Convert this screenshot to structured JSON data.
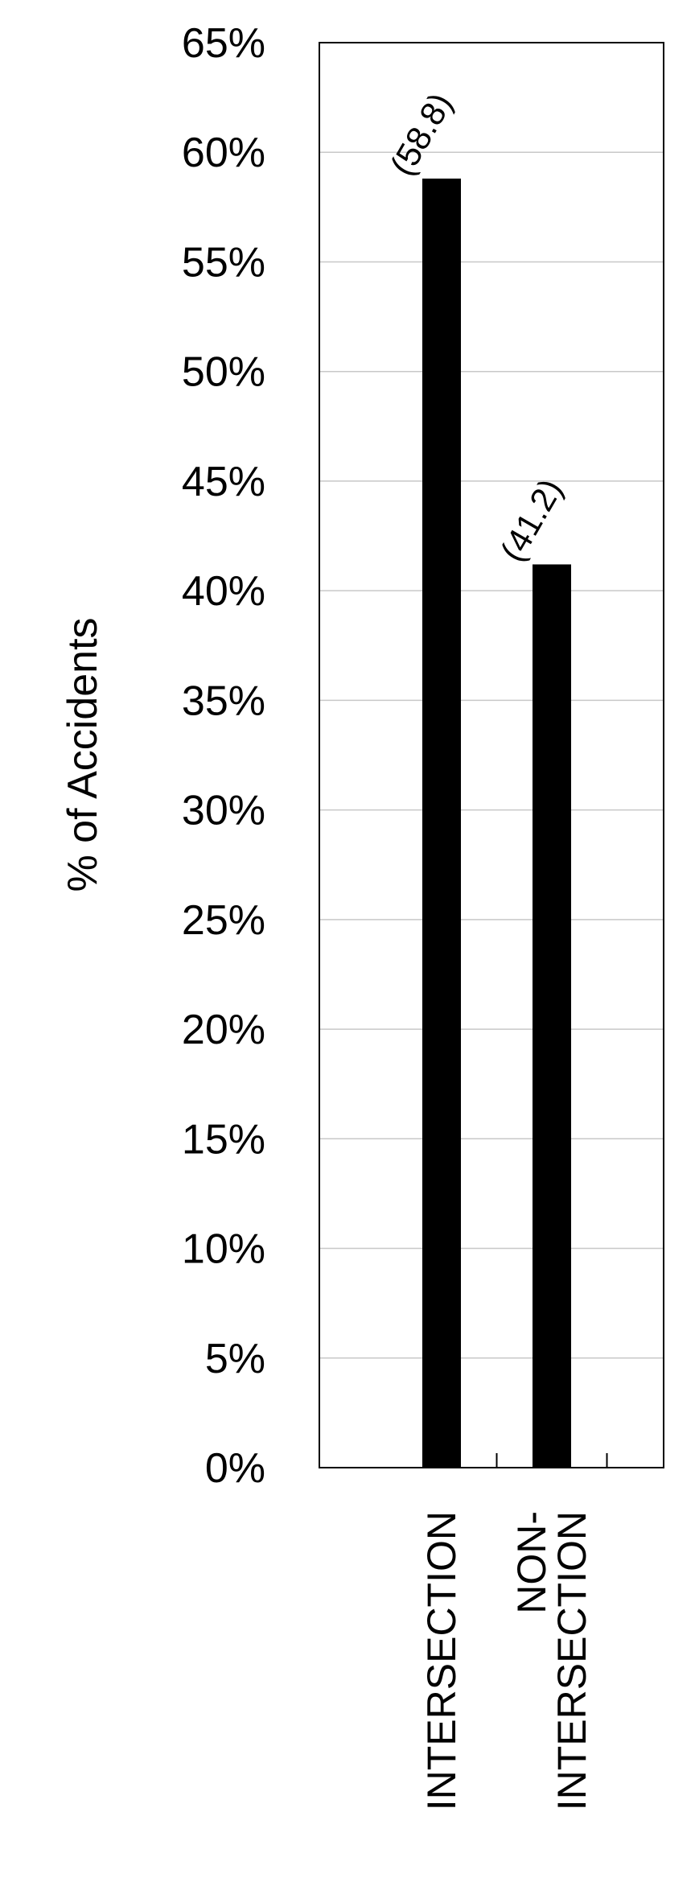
{
  "chart_data": {
    "type": "bar",
    "ylabel": "% of Accidents",
    "categories": [
      "INTERSECTION",
      "NON-\nINTERSECTION"
    ],
    "values": [
      58.8,
      41.2
    ],
    "data_labels": [
      "(58.8)",
      "(41.2)"
    ],
    "ylim": [
      0,
      65
    ],
    "yticks": [
      0,
      5,
      10,
      15,
      20,
      25,
      30,
      35,
      40,
      45,
      50,
      55,
      60,
      65
    ],
    "ytick_labels": [
      "0%",
      "5%",
      "10%",
      "15%",
      "20%",
      "25%",
      "30%",
      "35%",
      "40%",
      "45%",
      "50%",
      "55%",
      "60%",
      "65%"
    ],
    "grid": true,
    "bar_color": "#000000",
    "grid_color": "#c8c8c8"
  }
}
